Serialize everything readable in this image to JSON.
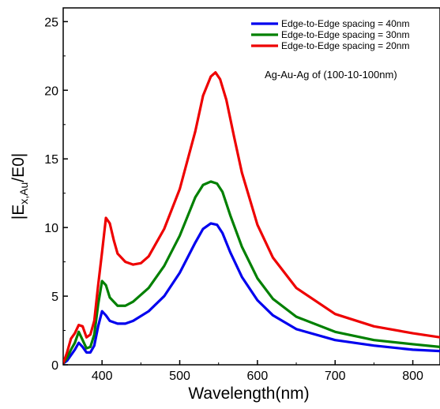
{
  "chart_data": {
    "type": "line",
    "title": "",
    "xlabel": "Wavelength(nm)",
    "ylabel_parts": {
      "main": "|E",
      "sub": "x,Au",
      "tail": "/E0|"
    },
    "xlim": [
      350,
      835
    ],
    "ylim": [
      0,
      26
    ],
    "xticks": [
      400,
      500,
      600,
      700,
      800
    ],
    "yticks": [
      0,
      5,
      10,
      15,
      20,
      25
    ],
    "grid": false,
    "legend_position": "top-right",
    "annotation": "Ag-Au-Ag of (100-10-100nm)",
    "series": [
      {
        "name": "Edge-to-Edge spacing = 40nm",
        "color": "#0000ee",
        "points": [
          [
            350,
            0.1
          ],
          [
            355,
            0.3
          ],
          [
            360,
            0.7
          ],
          [
            365,
            1.1
          ],
          [
            370,
            1.6
          ],
          [
            375,
            1.3
          ],
          [
            380,
            0.9
          ],
          [
            385,
            0.9
          ],
          [
            390,
            1.4
          ],
          [
            395,
            2.8
          ],
          [
            400,
            3.9
          ],
          [
            405,
            3.6
          ],
          [
            410,
            3.2
          ],
          [
            420,
            3.0
          ],
          [
            430,
            3.0
          ],
          [
            440,
            3.2
          ],
          [
            460,
            3.9
          ],
          [
            480,
            5.0
          ],
          [
            500,
            6.7
          ],
          [
            520,
            8.9
          ],
          [
            530,
            9.9
          ],
          [
            540,
            10.3
          ],
          [
            548,
            10.2
          ],
          [
            555,
            9.6
          ],
          [
            565,
            8.2
          ],
          [
            580,
            6.4
          ],
          [
            600,
            4.7
          ],
          [
            620,
            3.6
          ],
          [
            650,
            2.6
          ],
          [
            700,
            1.8
          ],
          [
            750,
            1.4
          ],
          [
            800,
            1.1
          ],
          [
            835,
            1.0
          ]
        ]
      },
      {
        "name": "Edge-to-Edge spacing = 30nm",
        "color": "#008000",
        "points": [
          [
            350,
            0.1
          ],
          [
            355,
            0.5
          ],
          [
            360,
            1.1
          ],
          [
            365,
            1.6
          ],
          [
            370,
            2.4
          ],
          [
            375,
            1.8
          ],
          [
            380,
            1.2
          ],
          [
            385,
            1.3
          ],
          [
            390,
            2.2
          ],
          [
            395,
            4.4
          ],
          [
            400,
            6.1
          ],
          [
            405,
            5.8
          ],
          [
            410,
            4.9
          ],
          [
            420,
            4.3
          ],
          [
            430,
            4.3
          ],
          [
            440,
            4.6
          ],
          [
            460,
            5.6
          ],
          [
            480,
            7.2
          ],
          [
            500,
            9.4
          ],
          [
            520,
            12.2
          ],
          [
            530,
            13.1
          ],
          [
            540,
            13.35
          ],
          [
            548,
            13.2
          ],
          [
            555,
            12.6
          ],
          [
            565,
            10.9
          ],
          [
            580,
            8.6
          ],
          [
            600,
            6.3
          ],
          [
            620,
            4.8
          ],
          [
            650,
            3.5
          ],
          [
            700,
            2.4
          ],
          [
            750,
            1.8
          ],
          [
            800,
            1.5
          ],
          [
            835,
            1.3
          ]
        ]
      },
      {
        "name": "Edge-to-Edge spacing = 20nm",
        "color": "#ee0000",
        "points": [
          [
            350,
            0.1
          ],
          [
            355,
            0.9
          ],
          [
            360,
            1.9
          ],
          [
            365,
            2.3
          ],
          [
            370,
            2.9
          ],
          [
            375,
            2.8
          ],
          [
            380,
            2.0
          ],
          [
            385,
            2.2
          ],
          [
            390,
            3.2
          ],
          [
            395,
            5.8
          ],
          [
            400,
            8.2
          ],
          [
            405,
            10.7
          ],
          [
            410,
            10.3
          ],
          [
            415,
            9.1
          ],
          [
            420,
            8.1
          ],
          [
            430,
            7.5
          ],
          [
            440,
            7.3
          ],
          [
            450,
            7.4
          ],
          [
            460,
            7.9
          ],
          [
            480,
            9.9
          ],
          [
            500,
            12.8
          ],
          [
            520,
            17.0
          ],
          [
            530,
            19.6
          ],
          [
            540,
            21.0
          ],
          [
            546,
            21.3
          ],
          [
            552,
            20.8
          ],
          [
            560,
            19.3
          ],
          [
            570,
            16.6
          ],
          [
            580,
            14.0
          ],
          [
            600,
            10.2
          ],
          [
            620,
            7.8
          ],
          [
            650,
            5.6
          ],
          [
            700,
            3.7
          ],
          [
            750,
            2.8
          ],
          [
            800,
            2.3
          ],
          [
            835,
            2.0
          ]
        ]
      }
    ]
  }
}
